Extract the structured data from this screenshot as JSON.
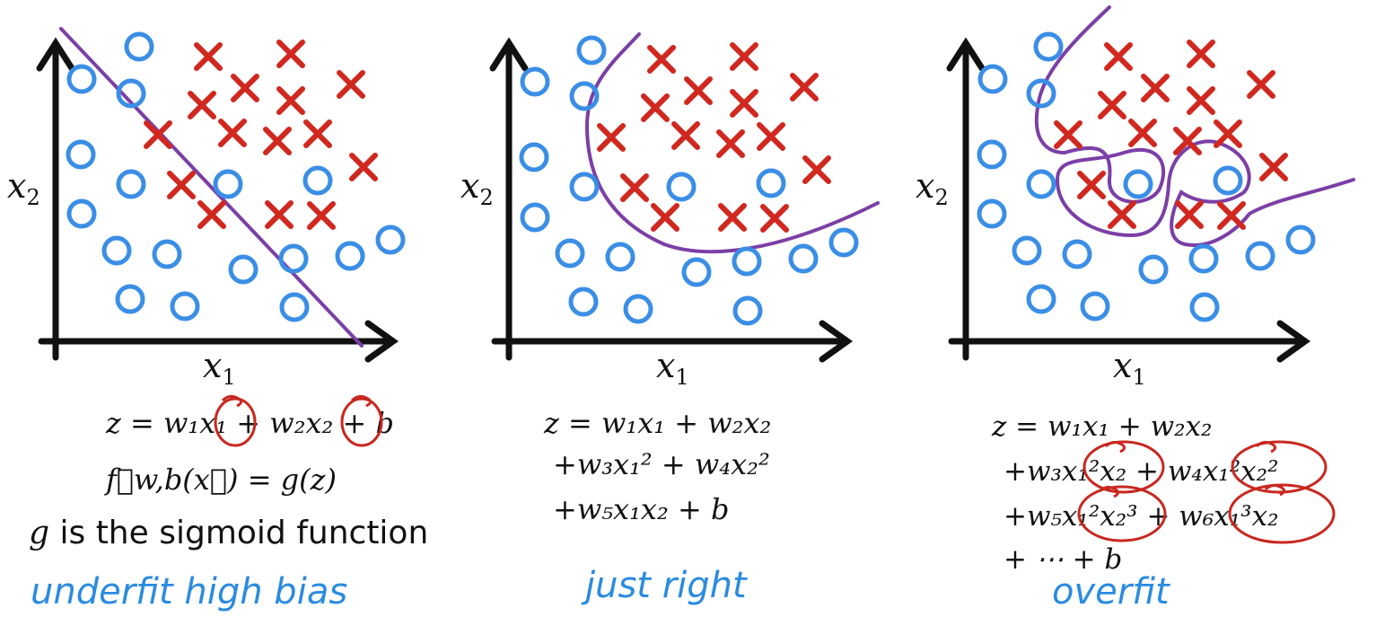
{
  "colors": {
    "axis": "#111111",
    "circle": "#3a8ee6",
    "cross": "#d0281f",
    "boundary": "#7b3fa6",
    "annotation": "#c8281f",
    "handwriting": "#2a8be0"
  },
  "panels": [
    {
      "id": "underfit",
      "xlabel": "x",
      "xlabel_sub": "1",
      "ylabel": "x",
      "ylabel_sub": "2",
      "equation_lines": [
        "z = w₁x₁ + w₂x₂ + b",
        "f⃗w,b(x⃗) = g(z)"
      ],
      "caption": "underfit     high bias"
    },
    {
      "id": "just-right",
      "xlabel": "x",
      "xlabel_sub": "1",
      "ylabel": "x",
      "ylabel_sub": "2",
      "equation_lines": [
        "z = w₁x₁ + w₂x₂",
        "+w₃x₁² + w₄x₂²",
        "+w₅x₁x₂ + b"
      ],
      "caption": "just right"
    },
    {
      "id": "overfit",
      "xlabel": "x",
      "xlabel_sub": "1",
      "ylabel": "x",
      "ylabel_sub": "2",
      "equation_lines": [
        "z = w₁x₁ + w₂x₂",
        "+w₃x₁²x₂ + w₄x₁²x₂²",
        "+w₅x₁²x₂³ +  w₆x₁³x₂",
        "+ ⋯ + b"
      ],
      "caption": "overfit"
    }
  ],
  "note": {
    "math": "g",
    "text": " is the sigmoid function"
  }
}
